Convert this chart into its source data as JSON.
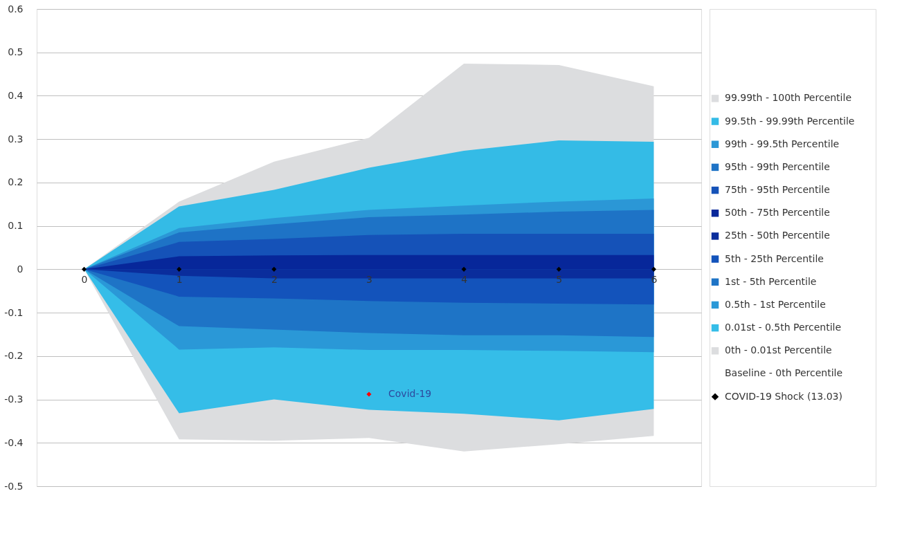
{
  "chart_data": {
    "type": "area",
    "x": [
      0,
      1,
      2,
      3,
      4,
      5,
      6
    ],
    "xlim": [
      -0.5,
      6.5
    ],
    "xticks": [
      0,
      1,
      2,
      3,
      4,
      5,
      6
    ],
    "ylim": [
      -0.5,
      0.6
    ],
    "yticks": [
      -0.5,
      -0.4,
      -0.3,
      -0.2,
      -0.1,
      0,
      0.1,
      0.2,
      0.3,
      0.4,
      0.5,
      0.6
    ],
    "grid": "y",
    "legend": "right",
    "series": [
      {
        "name": "99.99th - 100th Percentile",
        "color": "#dcdddf",
        "values": [
          0,
          0.156,
          0.248,
          0.303,
          0.474,
          0.471,
          0.422
        ]
      },
      {
        "name": "99.5th - 99.99th Percentile",
        "color": "#34bbe6",
        "values": [
          0,
          0.145,
          0.183,
          0.234,
          0.273,
          0.297,
          0.294
        ]
      },
      {
        "name": "99th - 99.5th Percentile",
        "color": "#2b97d6",
        "values": [
          0,
          0.095,
          0.118,
          0.137,
          0.147,
          0.156,
          0.163
        ]
      },
      {
        "name": "95th - 99th Percentile",
        "color": "#1e73c6",
        "values": [
          0,
          0.085,
          0.104,
          0.12,
          0.126,
          0.133,
          0.137
        ]
      },
      {
        "name": "75th - 95th Percentile",
        "color": "#1552b8",
        "values": [
          0,
          0.063,
          0.07,
          0.079,
          0.082,
          0.082,
          0.082
        ]
      },
      {
        "name": "50th - 75th Percentile",
        "color": "#07279a",
        "values": [
          0,
          0.03,
          0.032,
          0.033,
          0.033,
          0.033,
          0.033
        ]
      },
      {
        "name": "25th - 50th Percentile",
        "color": "#0a2d9c",
        "values": [
          0,
          -0.015,
          -0.021,
          -0.021,
          -0.021,
          -0.021,
          -0.021
        ]
      },
      {
        "name": "5th - 25th Percentile",
        "color": "#1353bb",
        "values": [
          0,
          -0.063,
          -0.067,
          -0.073,
          -0.077,
          -0.079,
          -0.081
        ]
      },
      {
        "name": "1st - 5th Percentile",
        "color": "#1e74c6",
        "values": [
          0,
          -0.131,
          -0.139,
          -0.147,
          -0.152,
          -0.152,
          -0.156
        ]
      },
      {
        "name": "0.5th - 1st Percentile",
        "color": "#2a98d7",
        "values": [
          0,
          -0.185,
          -0.18,
          -0.186,
          -0.186,
          -0.188,
          -0.191
        ]
      },
      {
        "name": "0.01st - 0.5th Percentile",
        "color": "#35bde8",
        "values": [
          0,
          -0.332,
          -0.3,
          -0.324,
          -0.333,
          -0.348,
          -0.322
        ]
      },
      {
        "name": "0th - 0.01st Percentile",
        "color": "#dcdddf",
        "values": [
          0,
          -0.392,
          -0.395,
          -0.389,
          -0.42,
          -0.403,
          -0.384
        ]
      },
      {
        "name": "Baseline - 0th Percentile",
        "values": [
          null,
          null,
          null,
          null,
          null,
          null,
          null
        ]
      },
      {
        "name": "COVID-19 Shock (13.03)",
        "type": "scatter",
        "marker": "diamond",
        "color": "#000000",
        "colors": [
          "#000000",
          "#000000",
          "#000000",
          "#ff0000",
          "#000000",
          "#000000",
          "#000000"
        ],
        "values": [
          0,
          0,
          0,
          -0.288,
          0,
          0,
          0
        ]
      }
    ],
    "annotations": [
      {
        "text": "Covid-19",
        "x": 3,
        "y": -0.288
      }
    ]
  }
}
